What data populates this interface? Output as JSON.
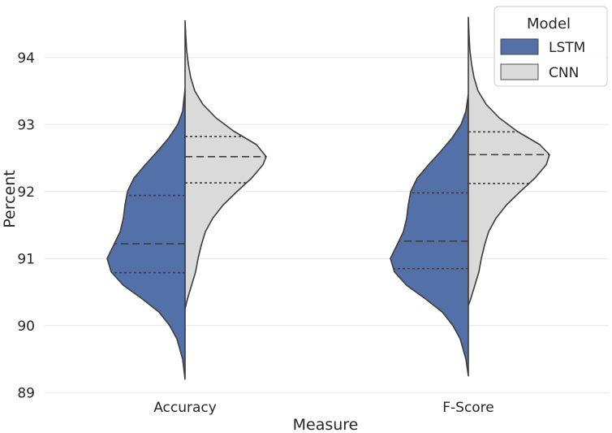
{
  "chart_data": {
    "type": "violin",
    "split": true,
    "xlabel": "Measure",
    "ylabel": "Percent",
    "ylim": [
      88.9,
      94.7
    ],
    "yticks": [
      89,
      90,
      91,
      92,
      93,
      94
    ],
    "grid": true,
    "categories": [
      "Accuracy",
      "F-Score"
    ],
    "legend": {
      "title": "Model",
      "placement": "top-right"
    },
    "series": [
      {
        "name": "LSTM",
        "color": "#5470a8",
        "side": "left",
        "groups": [
          {
            "category": "Accuracy",
            "q1": 90.79,
            "median": 91.22,
            "q3": 91.94,
            "profile": [
              [
                89.2,
                0.0
              ],
              [
                89.5,
                0.03
              ],
              [
                89.8,
                0.1
              ],
              [
                90.0,
                0.19
              ],
              [
                90.2,
                0.32
              ],
              [
                90.4,
                0.53
              ],
              [
                90.6,
                0.76
              ],
              [
                90.8,
                0.91
              ],
              [
                91.0,
                0.96
              ],
              [
                91.2,
                0.88
              ],
              [
                91.4,
                0.8
              ],
              [
                91.6,
                0.76
              ],
              [
                91.8,
                0.74
              ],
              [
                92.0,
                0.71
              ],
              [
                92.2,
                0.63
              ],
              [
                92.4,
                0.49
              ],
              [
                92.6,
                0.34
              ],
              [
                92.8,
                0.2
              ],
              [
                93.0,
                0.09
              ],
              [
                93.2,
                0.03
              ],
              [
                93.53,
                0.0
              ]
            ]
          },
          {
            "category": "F-Score",
            "q1": 90.85,
            "median": 91.26,
            "q3": 91.98,
            "profile": [
              [
                89.25,
                0.0
              ],
              [
                89.5,
                0.03
              ],
              [
                89.8,
                0.1
              ],
              [
                90.0,
                0.19
              ],
              [
                90.2,
                0.32
              ],
              [
                90.4,
                0.53
              ],
              [
                90.6,
                0.76
              ],
              [
                90.8,
                0.91
              ],
              [
                91.0,
                0.96
              ],
              [
                91.2,
                0.88
              ],
              [
                91.4,
                0.8
              ],
              [
                91.6,
                0.76
              ],
              [
                91.8,
                0.74
              ],
              [
                92.0,
                0.71
              ],
              [
                92.2,
                0.63
              ],
              [
                92.4,
                0.49
              ],
              [
                92.6,
                0.34
              ],
              [
                92.8,
                0.2
              ],
              [
                93.0,
                0.09
              ],
              [
                93.2,
                0.03
              ],
              [
                93.45,
                0.0
              ]
            ]
          }
        ]
      },
      {
        "name": "CNN",
        "color": "#dadada",
        "side": "right",
        "groups": [
          {
            "category": "Accuracy",
            "q1": 92.13,
            "median": 92.52,
            "q3": 92.82,
            "profile": [
              [
                90.25,
                0.0
              ],
              [
                90.4,
                0.03
              ],
              [
                90.6,
                0.08
              ],
              [
                90.8,
                0.13
              ],
              [
                91.0,
                0.16
              ],
              [
                91.2,
                0.2
              ],
              [
                91.4,
                0.25
              ],
              [
                91.6,
                0.34
              ],
              [
                91.8,
                0.47
              ],
              [
                92.0,
                0.64
              ],
              [
                92.2,
                0.82
              ],
              [
                92.4,
                0.96
              ],
              [
                92.52,
                1.0
              ],
              [
                92.7,
                0.88
              ],
              [
                92.9,
                0.6
              ],
              [
                93.1,
                0.38
              ],
              [
                93.3,
                0.22
              ],
              [
                93.5,
                0.12
              ],
              [
                93.7,
                0.07
              ],
              [
                93.9,
                0.04
              ],
              [
                94.1,
                0.02
              ],
              [
                94.3,
                0.01
              ],
              [
                94.55,
                0.0
              ]
            ]
          },
          {
            "category": "F-Score",
            "q1": 92.12,
            "median": 92.55,
            "q3": 92.89,
            "profile": [
              [
                90.3,
                0.0
              ],
              [
                90.4,
                0.03
              ],
              [
                90.6,
                0.08
              ],
              [
                90.8,
                0.13
              ],
              [
                91.0,
                0.16
              ],
              [
                91.2,
                0.2
              ],
              [
                91.4,
                0.25
              ],
              [
                91.6,
                0.34
              ],
              [
                91.8,
                0.47
              ],
              [
                92.0,
                0.64
              ],
              [
                92.2,
                0.82
              ],
              [
                92.4,
                0.96
              ],
              [
                92.55,
                1.0
              ],
              [
                92.7,
                0.88
              ],
              [
                92.9,
                0.6
              ],
              [
                93.1,
                0.38
              ],
              [
                93.3,
                0.22
              ],
              [
                93.5,
                0.12
              ],
              [
                93.7,
                0.07
              ],
              [
                93.9,
                0.04
              ],
              [
                94.1,
                0.02
              ],
              [
                94.3,
                0.01
              ],
              [
                94.6,
                0.0
              ]
            ]
          }
        ]
      }
    ]
  }
}
